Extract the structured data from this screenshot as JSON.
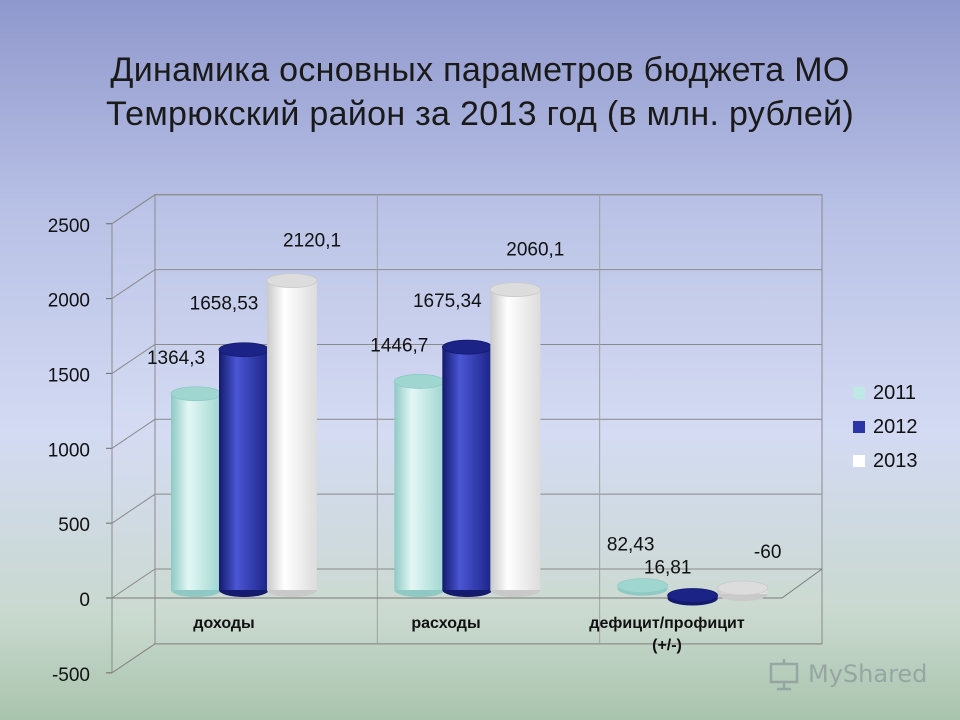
{
  "title_lines": [
    "Динамика основных параметров бюджета МО",
    "Темрюкский район за 2013 год (в млн. рублей)"
  ],
  "chart_data": {
    "type": "bar",
    "categories": [
      "доходы",
      "расходы",
      "дефицит/профицит (+/-)"
    ],
    "series": [
      {
        "name": "2011",
        "values": [
          1364.3,
          1446.7,
          82.43
        ],
        "labels": [
          "1364,3",
          "1446,7",
          "82,43"
        ],
        "color": "#bde8e4"
      },
      {
        "name": "2012",
        "values": [
          1658.53,
          1675.34,
          16.81
        ],
        "labels": [
          "1658,53",
          "1675,34",
          "16,81"
        ],
        "color": "#2b35a8"
      },
      {
        "name": "2013",
        "values": [
          2120.1,
          2060.1,
          -60
        ],
        "labels": [
          "2120,1",
          "2060,1",
          "-60"
        ],
        "color": "#f4f4f4"
      }
    ],
    "ylim": [
      -500,
      2500
    ],
    "yticks": [
      -500,
      0,
      500,
      1000,
      1500,
      2000,
      2500
    ],
    "grid": true,
    "legend": "right"
  },
  "watermark": {
    "text": "MyShared"
  }
}
